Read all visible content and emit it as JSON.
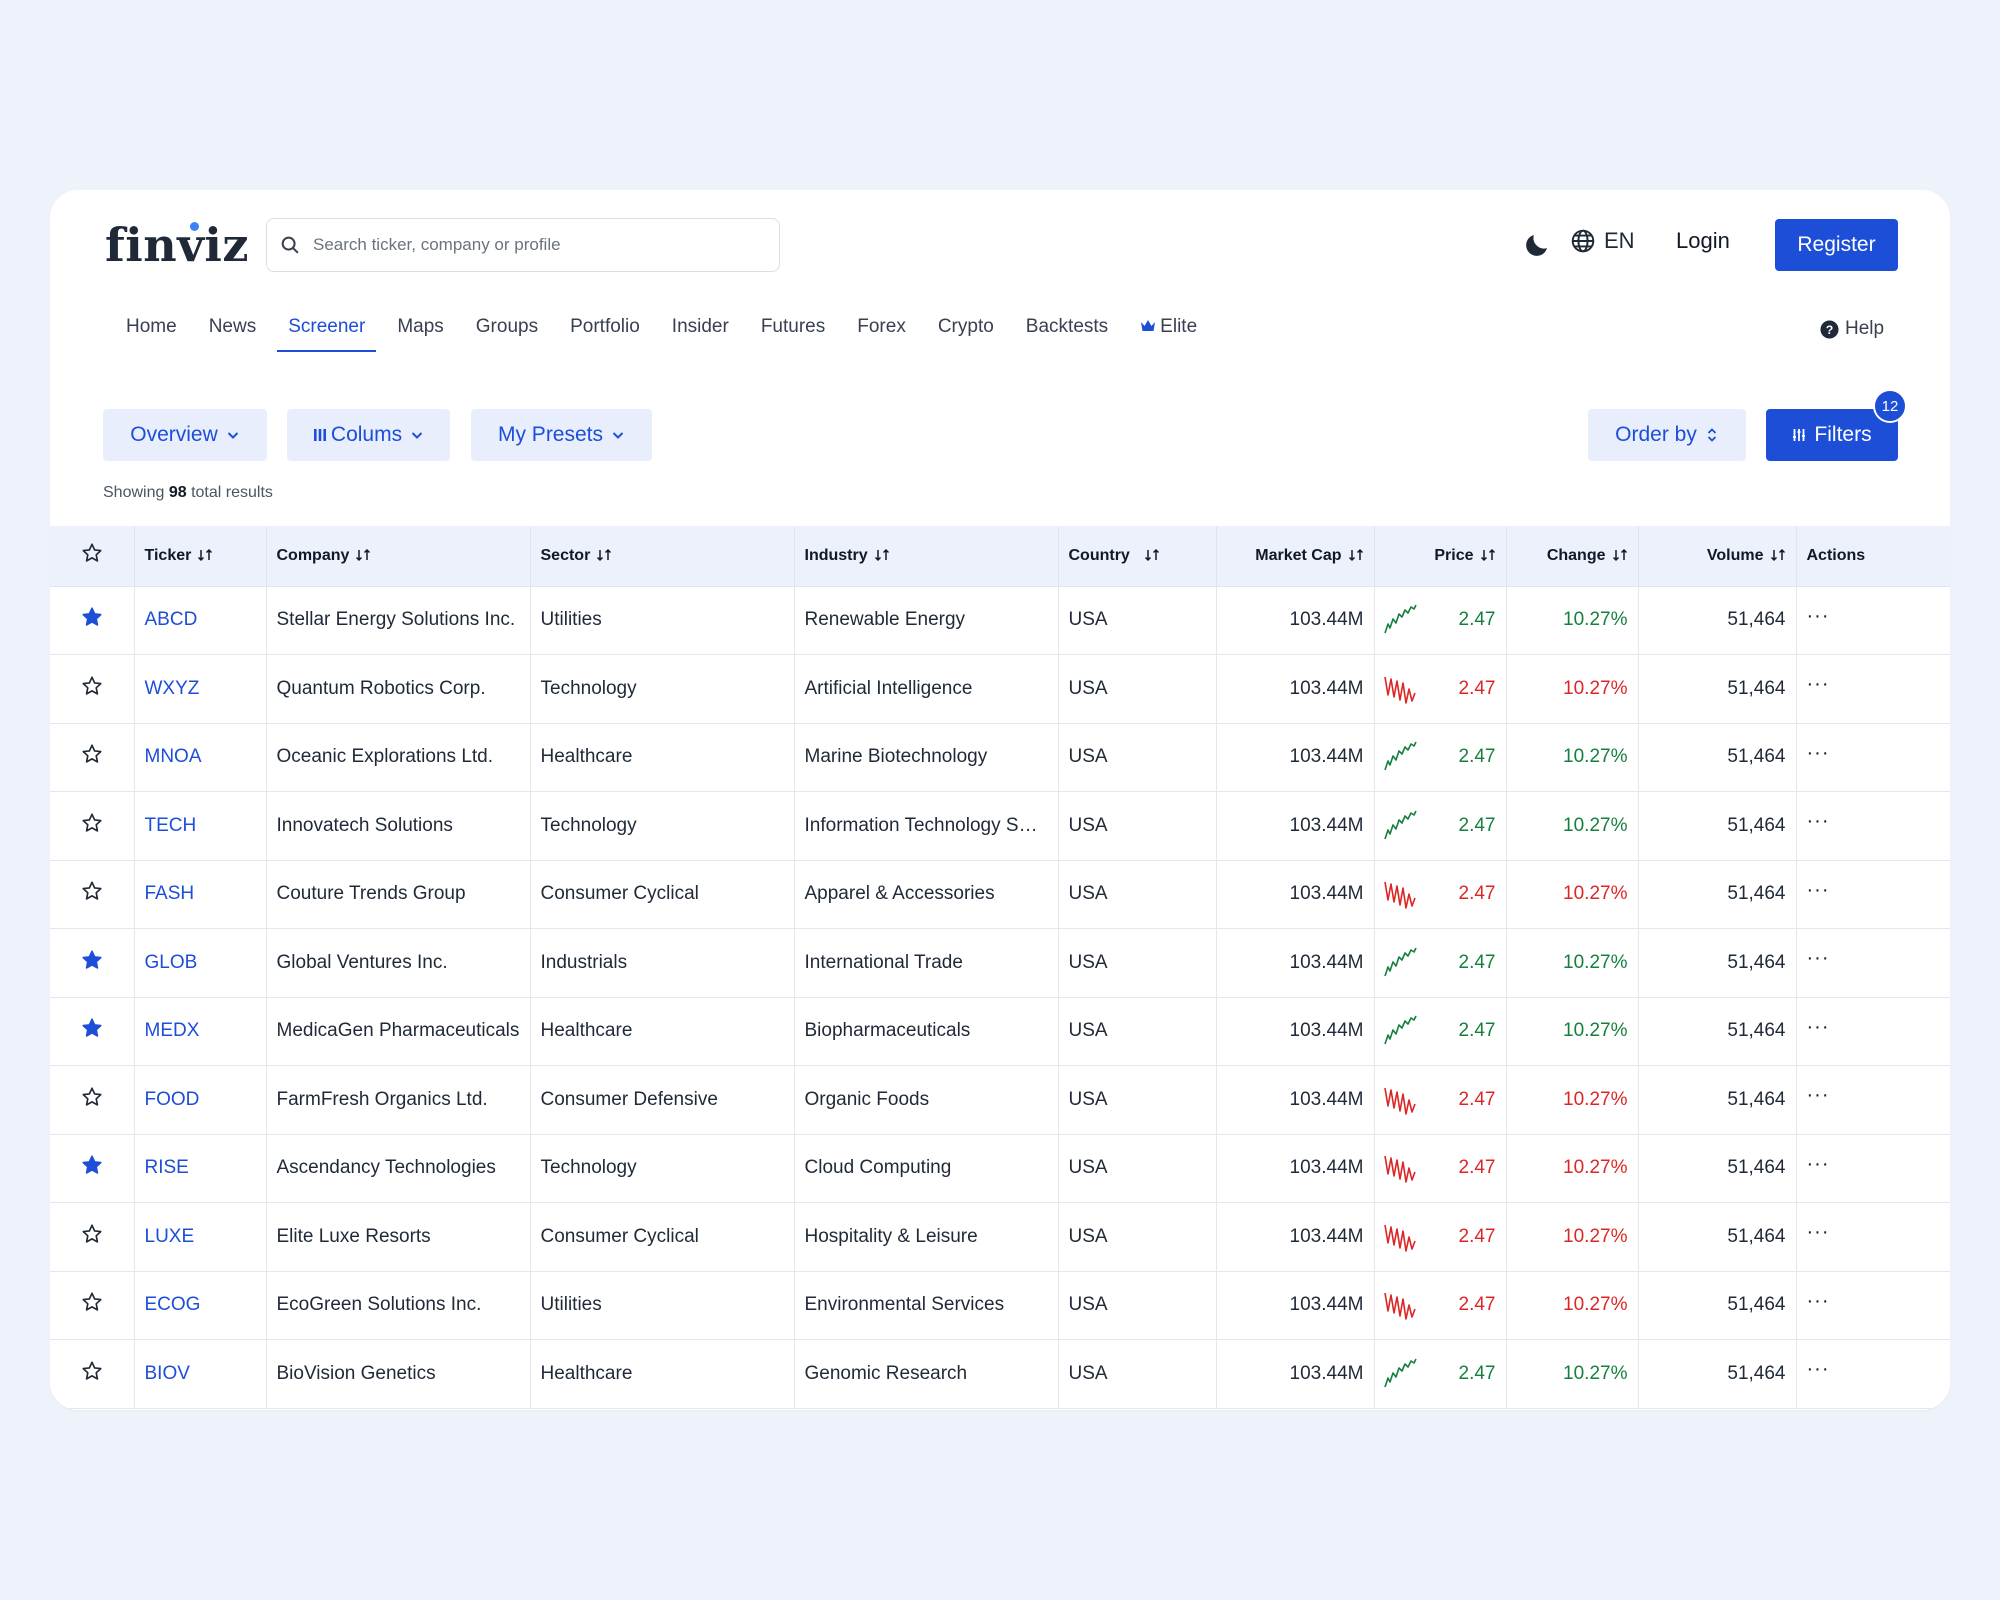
{
  "header": {
    "logo": "finviz",
    "search_placeholder": "Search ticker, company or profile",
    "language": "EN",
    "login": "Login",
    "register": "Register"
  },
  "nav": {
    "items": [
      "Home",
      "News",
      "Screener",
      "Maps",
      "Groups",
      "Portfolio",
      "Insider",
      "Futures",
      "Forex",
      "Crypto",
      "Backtests",
      "Elite"
    ],
    "active": "Screener",
    "help": "Help"
  },
  "toolbar": {
    "overview": "Overview",
    "columns": "Colums",
    "presets": "My Presets",
    "order_by": "Order by",
    "filters": "Filters",
    "filters_count": "12"
  },
  "results": {
    "prefix": "Showing",
    "count": "98",
    "suffix": "total results"
  },
  "table": {
    "columns": [
      "Ticker",
      "Company",
      "Sector",
      "Industry",
      "Country",
      "Market Cap",
      "Price",
      "Change",
      "Volume",
      "Actions"
    ],
    "rows": [
      {
        "starred": true,
        "ticker": "ABCD",
        "company": "Stellar Energy Solutions Inc.",
        "sector": "Utilities",
        "industry": "Renewable Energy",
        "country": "USA",
        "market_cap": "103.44M",
        "trend": "up",
        "price": "2.47",
        "change": "10.27%",
        "volume": "51,464"
      },
      {
        "starred": false,
        "ticker": "WXYZ",
        "company": "Quantum Robotics Corp.",
        "sector": "Technology",
        "industry": "Artificial Intelligence",
        "country": "USA",
        "market_cap": "103.44M",
        "trend": "down",
        "price": "2.47",
        "change": "10.27%",
        "volume": "51,464"
      },
      {
        "starred": false,
        "ticker": "MNOA",
        "company": "Oceanic Explorations Ltd.",
        "sector": "Healthcare",
        "industry": "Marine Biotechnology",
        "country": "USA",
        "market_cap": "103.44M",
        "trend": "up",
        "price": "2.47",
        "change": "10.27%",
        "volume": "51,464"
      },
      {
        "starred": false,
        "ticker": "TECH",
        "company": "Innovatech Solutions",
        "sector": "Technology",
        "industry": "Information Technology Services",
        "country": "USA",
        "market_cap": "103.44M",
        "trend": "up",
        "price": "2.47",
        "change": "10.27%",
        "volume": "51,464"
      },
      {
        "starred": false,
        "ticker": "FASH",
        "company": "Couture Trends Group",
        "sector": "Consumer Cyclical",
        "industry": "Apparel & Accessories",
        "country": "USA",
        "market_cap": "103.44M",
        "trend": "down",
        "price": "2.47",
        "change": "10.27%",
        "volume": "51,464"
      },
      {
        "starred": true,
        "ticker": "GLOB",
        "company": "Global Ventures Inc.",
        "sector": "Industrials",
        "industry": "International Trade",
        "country": "USA",
        "market_cap": "103.44M",
        "trend": "up",
        "price": "2.47",
        "change": "10.27%",
        "volume": "51,464"
      },
      {
        "starred": true,
        "ticker": "MEDX",
        "company": "MedicaGen Pharmaceuticals",
        "sector": "Healthcare",
        "industry": "Biopharmaceuticals",
        "country": "USA",
        "market_cap": "103.44M",
        "trend": "up",
        "price": "2.47",
        "change": "10.27%",
        "volume": "51,464"
      },
      {
        "starred": false,
        "ticker": "FOOD",
        "company": "FarmFresh Organics Ltd.",
        "sector": "Consumer Defensive",
        "industry": "Organic Foods",
        "country": "USA",
        "market_cap": "103.44M",
        "trend": "down",
        "price": "2.47",
        "change": "10.27%",
        "volume": "51,464"
      },
      {
        "starred": true,
        "ticker": "RISE",
        "company": "Ascendancy Technologies",
        "sector": "Technology",
        "industry": "Cloud Computing",
        "country": "USA",
        "market_cap": "103.44M",
        "trend": "down",
        "price": "2.47",
        "change": "10.27%",
        "volume": "51,464"
      },
      {
        "starred": false,
        "ticker": "LUXE",
        "company": "Elite Luxe Resorts",
        "sector": "Consumer Cyclical",
        "industry": "Hospitality & Leisure",
        "country": "USA",
        "market_cap": "103.44M",
        "trend": "down",
        "price": "2.47",
        "change": "10.27%",
        "volume": "51,464"
      },
      {
        "starred": false,
        "ticker": "ECOG",
        "company": "EcoGreen Solutions Inc.",
        "sector": "Utilities",
        "industry": "Environmental Services",
        "country": "USA",
        "market_cap": "103.44M",
        "trend": "down",
        "price": "2.47",
        "change": "10.27%",
        "volume": "51,464"
      },
      {
        "starred": false,
        "ticker": "BIOV",
        "company": "BioVision Genetics",
        "sector": "Healthcare",
        "industry": "Genomic Research",
        "country": "USA",
        "market_cap": "103.44M",
        "trend": "up",
        "price": "2.47",
        "change": "10.27%",
        "volume": "51,464"
      }
    ],
    "actions_label": "···"
  },
  "colors": {
    "accent": "#1d4ed8",
    "positive": "#15803d",
    "negative": "#dc2626",
    "page_background": "#eef2fb"
  }
}
